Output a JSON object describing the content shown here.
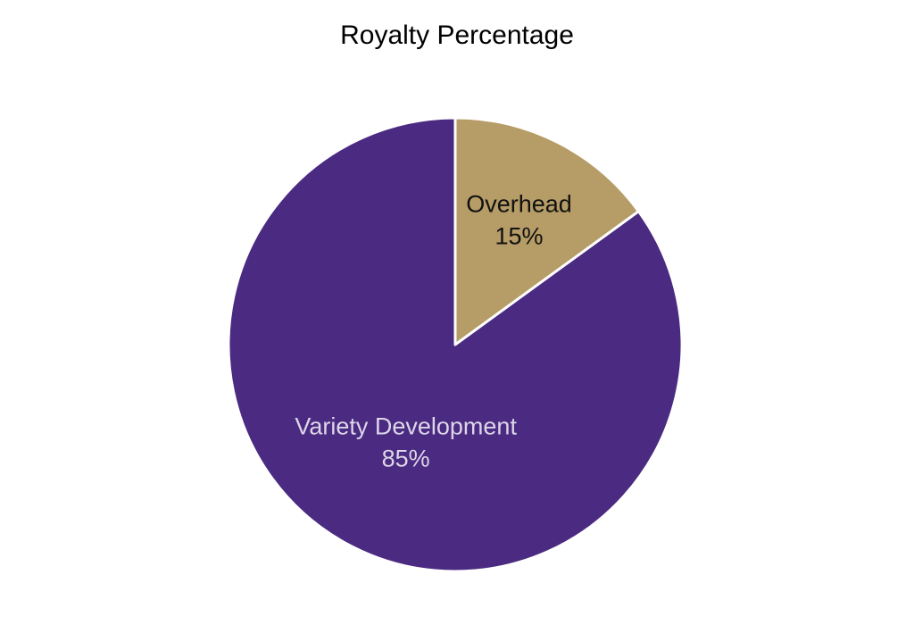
{
  "chart_data": {
    "type": "pie",
    "title": "Royalty Percentage",
    "slices": [
      {
        "label": "Overhead",
        "value": 15,
        "value_label": "15%",
        "color": "#b69c66",
        "label_color": "#111111"
      },
      {
        "label": "Variety Development",
        "value": 85,
        "value_label": "85%",
        "color": "#4b2a81",
        "label_color": "#dcd6e8"
      }
    ],
    "start_angle": "12 o'clock",
    "direction": "clockwise",
    "slice_border_color": "#ffffff",
    "legend": "none"
  }
}
